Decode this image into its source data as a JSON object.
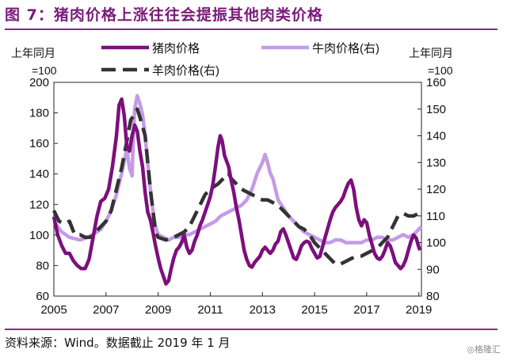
{
  "title": "图 7：猪肉价格上涨往往会提振其他肉类价格",
  "source": "资料来源：Wind。数据截止 2019 年 1 月",
  "watermark": "◎格隆汇",
  "chart_data": {
    "type": "line",
    "left_axis": {
      "label_line1": "上年同月",
      "label_line2": "=100",
      "ticks": [
        60,
        80,
        100,
        120,
        140,
        160,
        180,
        200
      ],
      "range": [
        60,
        200
      ]
    },
    "right_axis": {
      "label_line1": "上年同月",
      "label_line2": "=100",
      "ticks": [
        80,
        90,
        100,
        110,
        120,
        130,
        140,
        150,
        160
      ],
      "range": [
        80,
        160
      ]
    },
    "x_ticks": [
      "2005",
      "2007",
      "2009",
      "2011",
      "2013",
      "2015",
      "2017",
      "2019"
    ],
    "x_range": [
      2005,
      2019.1
    ],
    "series": [
      {
        "name": "猪肉价格",
        "axis": "left",
        "color": "#7d0f7d",
        "dash": "solid",
        "width": 4.5,
        "points": [
          [
            2005.0,
            112
          ],
          [
            2005.15,
            100
          ],
          [
            2005.3,
            93
          ],
          [
            2005.45,
            88
          ],
          [
            2005.6,
            88
          ],
          [
            2005.75,
            83
          ],
          [
            2005.9,
            80
          ],
          [
            2006.05,
            78
          ],
          [
            2006.2,
            78
          ],
          [
            2006.35,
            84
          ],
          [
            2006.5,
            98
          ],
          [
            2006.65,
            112
          ],
          [
            2006.8,
            122
          ],
          [
            2006.95,
            124
          ],
          [
            2007.1,
            130
          ],
          [
            2007.25,
            145
          ],
          [
            2007.4,
            165
          ],
          [
            2007.5,
            185
          ],
          [
            2007.6,
            189
          ],
          [
            2007.7,
            178
          ],
          [
            2007.8,
            158
          ],
          [
            2007.9,
            155
          ],
          [
            2008.0,
            165
          ],
          [
            2008.1,
            172
          ],
          [
            2008.2,
            168
          ],
          [
            2008.3,
            155
          ],
          [
            2008.4,
            145
          ],
          [
            2008.5,
            128
          ],
          [
            2008.6,
            115
          ],
          [
            2008.7,
            110
          ],
          [
            2008.8,
            102
          ],
          [
            2008.9,
            93
          ],
          [
            2009.0,
            85
          ],
          [
            2009.1,
            78
          ],
          [
            2009.2,
            73
          ],
          [
            2009.3,
            68
          ],
          [
            2009.4,
            70
          ],
          [
            2009.5,
            78
          ],
          [
            2009.6,
            85
          ],
          [
            2009.7,
            90
          ],
          [
            2009.8,
            92
          ],
          [
            2009.9,
            95
          ],
          [
            2010.0,
            100
          ],
          [
            2010.1,
            92
          ],
          [
            2010.2,
            88
          ],
          [
            2010.3,
            90
          ],
          [
            2010.4,
            96
          ],
          [
            2010.5,
            100
          ],
          [
            2010.6,
            106
          ],
          [
            2010.7,
            110
          ],
          [
            2010.8,
            115
          ],
          [
            2010.9,
            120
          ],
          [
            2011.0,
            125
          ],
          [
            2011.1,
            133
          ],
          [
            2011.2,
            145
          ],
          [
            2011.3,
            158
          ],
          [
            2011.38,
            165
          ],
          [
            2011.45,
            162
          ],
          [
            2011.55,
            152
          ],
          [
            2011.7,
            145
          ],
          [
            2011.8,
            136
          ],
          [
            2011.9,
            128
          ],
          [
            2012.0,
            118
          ],
          [
            2012.1,
            110
          ],
          [
            2012.2,
            100
          ],
          [
            2012.3,
            90
          ],
          [
            2012.4,
            84
          ],
          [
            2012.5,
            80
          ],
          [
            2012.6,
            79
          ],
          [
            2012.7,
            82
          ],
          [
            2012.8,
            84
          ],
          [
            2012.9,
            86
          ],
          [
            2013.0,
            90
          ],
          [
            2013.1,
            92
          ],
          [
            2013.2,
            90
          ],
          [
            2013.3,
            88
          ],
          [
            2013.4,
            90
          ],
          [
            2013.5,
            94
          ],
          [
            2013.6,
            96
          ],
          [
            2013.7,
            102
          ],
          [
            2013.8,
            104
          ],
          [
            2013.9,
            100
          ],
          [
            2014.0,
            95
          ],
          [
            2014.1,
            90
          ],
          [
            2014.2,
            85
          ],
          [
            2014.3,
            84
          ],
          [
            2014.4,
            88
          ],
          [
            2014.5,
            93
          ],
          [
            2014.6,
            95
          ],
          [
            2014.7,
            96
          ],
          [
            2014.8,
            95
          ],
          [
            2014.9,
            91
          ],
          [
            2015.0,
            88
          ],
          [
            2015.1,
            85
          ],
          [
            2015.2,
            86
          ],
          [
            2015.3,
            92
          ],
          [
            2015.4,
            98
          ],
          [
            2015.5,
            104
          ],
          [
            2015.6,
            110
          ],
          [
            2015.7,
            115
          ],
          [
            2015.8,
            118
          ],
          [
            2015.9,
            120
          ],
          [
            2016.0,
            122
          ],
          [
            2016.1,
            125
          ],
          [
            2016.2,
            130
          ],
          [
            2016.3,
            134
          ],
          [
            2016.4,
            136
          ],
          [
            2016.5,
            130
          ],
          [
            2016.6,
            118
          ],
          [
            2016.7,
            110
          ],
          [
            2016.8,
            106
          ],
          [
            2016.9,
            110
          ],
          [
            2017.0,
            108
          ],
          [
            2017.1,
            100
          ],
          [
            2017.2,
            94
          ],
          [
            2017.3,
            88
          ],
          [
            2017.4,
            85
          ],
          [
            2017.5,
            84
          ],
          [
            2017.6,
            86
          ],
          [
            2017.7,
            90
          ],
          [
            2017.8,
            95
          ],
          [
            2017.9,
            93
          ],
          [
            2018.0,
            88
          ],
          [
            2018.1,
            82
          ],
          [
            2018.2,
            80
          ],
          [
            2018.3,
            78
          ],
          [
            2018.4,
            80
          ],
          [
            2018.5,
            84
          ],
          [
            2018.6,
            90
          ],
          [
            2018.7,
            96
          ],
          [
            2018.8,
            100
          ],
          [
            2018.9,
            98
          ],
          [
            2019.0,
            92
          ],
          [
            2019.05,
            90
          ]
        ]
      },
      {
        "name": "牛肉价格(右)",
        "axis": "right",
        "color": "#c49be6",
        "dash": "solid",
        "width": 4.5,
        "points": [
          [
            2005.0,
            108
          ],
          [
            2005.3,
            104
          ],
          [
            2005.6,
            102
          ],
          [
            2006.0,
            101
          ],
          [
            2006.3,
            102
          ],
          [
            2006.5,
            103
          ],
          [
            2006.8,
            105
          ],
          [
            2007.0,
            108
          ],
          [
            2007.2,
            112
          ],
          [
            2007.4,
            118
          ],
          [
            2007.6,
            126
          ],
          [
            2007.8,
            135
          ],
          [
            2007.9,
            128
          ],
          [
            2008.0,
            125
          ],
          [
            2008.05,
            140
          ],
          [
            2008.1,
            150
          ],
          [
            2008.2,
            155
          ],
          [
            2008.3,
            152
          ],
          [
            2008.4,
            148
          ],
          [
            2008.5,
            140
          ],
          [
            2008.6,
            130
          ],
          [
            2008.7,
            120
          ],
          [
            2008.8,
            112
          ],
          [
            2008.9,
            106
          ],
          [
            2009.0,
            103
          ],
          [
            2009.2,
            102
          ],
          [
            2009.4,
            101
          ],
          [
            2009.6,
            102
          ],
          [
            2009.8,
            102
          ],
          [
            2010.0,
            103
          ],
          [
            2010.2,
            103
          ],
          [
            2010.4,
            104
          ],
          [
            2010.6,
            105
          ],
          [
            2010.8,
            106
          ],
          [
            2011.0,
            107
          ],
          [
            2011.2,
            108
          ],
          [
            2011.4,
            110
          ],
          [
            2011.6,
            111
          ],
          [
            2011.8,
            112
          ],
          [
            2012.0,
            113
          ],
          [
            2012.2,
            114
          ],
          [
            2012.4,
            116
          ],
          [
            2012.6,
            120
          ],
          [
            2012.8,
            126
          ],
          [
            2013.0,
            130
          ],
          [
            2013.1,
            133
          ],
          [
            2013.2,
            130
          ],
          [
            2013.3,
            126
          ],
          [
            2013.4,
            124
          ],
          [
            2013.5,
            120
          ],
          [
            2013.6,
            116
          ],
          [
            2013.8,
            113
          ],
          [
            2014.0,
            110
          ],
          [
            2014.2,
            108
          ],
          [
            2014.4,
            106
          ],
          [
            2014.6,
            104
          ],
          [
            2014.8,
            103
          ],
          [
            2015.0,
            102
          ],
          [
            2015.2,
            101
          ],
          [
            2015.4,
            100
          ],
          [
            2015.6,
            100
          ],
          [
            2015.8,
            101
          ],
          [
            2016.0,
            101
          ],
          [
            2016.2,
            100
          ],
          [
            2016.4,
            100
          ],
          [
            2016.6,
            100
          ],
          [
            2016.8,
            100
          ],
          [
            2017.0,
            101
          ],
          [
            2017.2,
            101
          ],
          [
            2017.4,
            102
          ],
          [
            2017.6,
            102
          ],
          [
            2017.8,
            101
          ],
          [
            2018.0,
            101
          ],
          [
            2018.2,
            102
          ],
          [
            2018.4,
            103
          ],
          [
            2018.6,
            102
          ],
          [
            2018.8,
            103
          ],
          [
            2019.0,
            105
          ],
          [
            2019.1,
            106
          ]
        ]
      },
      {
        "name": "羊肉价格(右)",
        "axis": "right",
        "color": "#333333",
        "dash": "dashed",
        "width": 4.5,
        "points": [
          [
            2005.0,
            112
          ],
          [
            2005.2,
            108
          ],
          [
            2005.4,
            107
          ],
          [
            2005.6,
            108
          ],
          [
            2005.8,
            103
          ],
          [
            2006.0,
            103
          ],
          [
            2006.2,
            102
          ],
          [
            2006.4,
            102
          ],
          [
            2006.6,
            104
          ],
          [
            2006.8,
            106
          ],
          [
            2007.0,
            108
          ],
          [
            2007.2,
            112
          ],
          [
            2007.4,
            120
          ],
          [
            2007.6,
            128
          ],
          [
            2007.8,
            138
          ],
          [
            2007.95,
            146
          ],
          [
            2008.1,
            148
          ],
          [
            2008.2,
            150
          ],
          [
            2008.3,
            147
          ],
          [
            2008.5,
            140
          ],
          [
            2008.6,
            130
          ],
          [
            2008.7,
            120
          ],
          [
            2008.8,
            112
          ],
          [
            2008.9,
            104
          ],
          [
            2009.0,
            102
          ],
          [
            2009.3,
            101
          ],
          [
            2009.6,
            102
          ],
          [
            2009.8,
            103
          ],
          [
            2010.0,
            104
          ],
          [
            2010.2,
            106
          ],
          [
            2010.4,
            110
          ],
          [
            2010.6,
            114
          ],
          [
            2010.8,
            118
          ],
          [
            2011.0,
            120
          ],
          [
            2011.3,
            122
          ],
          [
            2011.5,
            124
          ],
          [
            2011.7,
            126
          ],
          [
            2011.8,
            124
          ],
          [
            2012.0,
            122
          ],
          [
            2012.2,
            120
          ],
          [
            2012.4,
            119
          ],
          [
            2012.6,
            118
          ],
          [
            2012.8,
            117
          ],
          [
            2013.0,
            116
          ],
          [
            2013.2,
            116
          ],
          [
            2013.4,
            115
          ],
          [
            2013.6,
            114
          ],
          [
            2013.8,
            112
          ],
          [
            2014.0,
            110
          ],
          [
            2014.2,
            108
          ],
          [
            2014.4,
            106
          ],
          [
            2014.6,
            105
          ],
          [
            2014.8,
            103
          ],
          [
            2015.0,
            100
          ],
          [
            2015.2,
            98
          ],
          [
            2015.4,
            96
          ],
          [
            2015.6,
            94
          ],
          [
            2015.8,
            92
          ],
          [
            2016.0,
            92
          ],
          [
            2016.2,
            93
          ],
          [
            2016.4,
            94
          ],
          [
            2016.6,
            95
          ],
          [
            2016.8,
            95
          ],
          [
            2017.0,
            96
          ],
          [
            2017.2,
            97
          ],
          [
            2017.4,
            98
          ],
          [
            2017.6,
            100
          ],
          [
            2017.8,
            102
          ],
          [
            2018.0,
            106
          ],
          [
            2018.2,
            110
          ],
          [
            2018.4,
            111
          ],
          [
            2018.6,
            110
          ],
          [
            2018.8,
            110
          ],
          [
            2019.0,
            111
          ]
        ]
      }
    ]
  }
}
